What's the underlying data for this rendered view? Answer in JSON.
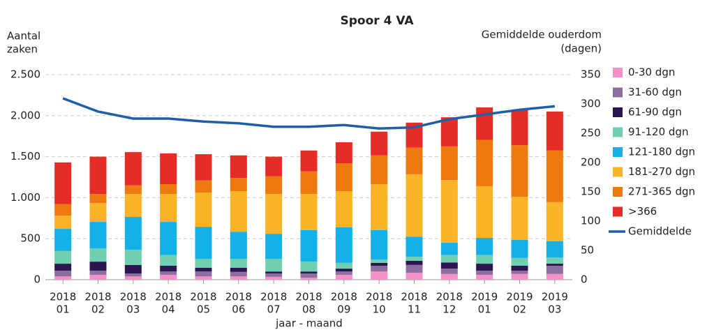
{
  "chart_data": {
    "type": "bar",
    "stacked": true,
    "title": "Spoor 4 VA",
    "y_label": [
      "Aantal",
      "zaken"
    ],
    "y2_label": [
      "Gemiddelde ouderdom",
      "(dagen)"
    ],
    "x_label": "jaar - maand",
    "categories": [
      [
        "2018",
        "01"
      ],
      [
        "2018",
        "02"
      ],
      [
        "2018",
        "03"
      ],
      [
        "2018",
        "04"
      ],
      [
        "2018",
        "05"
      ],
      [
        "2018",
        "06"
      ],
      [
        "2018",
        "07"
      ],
      [
        "2018",
        "08"
      ],
      [
        "2018",
        "09"
      ],
      [
        "2018",
        "10"
      ],
      [
        "2018",
        "11"
      ],
      [
        "2018",
        "12"
      ],
      [
        "2019",
        "01"
      ],
      [
        "2019",
        "02"
      ],
      [
        "2019",
        "03"
      ]
    ],
    "ylim": [
      0,
      2500
    ],
    "yticks": [
      0,
      {
        "value": 500,
        "label": "500"
      },
      {
        "value": 1000,
        "label": "1.000"
      },
      {
        "value": 1500,
        "label": "1.500"
      },
      {
        "value": 2000,
        "label": "2.000"
      },
      {
        "value": 2500,
        "label": "2.500"
      }
    ],
    "y2lim": [
      0,
      350
    ],
    "y2ticks": [
      0,
      50,
      100,
      150,
      200,
      250,
      300,
      350
    ],
    "grid": true,
    "legend": "right",
    "series": [
      {
        "name": "0-30 dgn",
        "color": "#f590c8",
        "values": [
          40,
          60,
          40,
          60,
          40,
          40,
          35,
          25,
          60,
          100,
          85,
          70,
          60,
          70,
          70
        ]
      },
      {
        "name": "31-60 dgn",
        "color": "#8c6fa0",
        "values": [
          70,
          50,
          35,
          40,
          60,
          55,
          40,
          50,
          40,
          70,
          95,
          65,
          50,
          40,
          100
        ]
      },
      {
        "name": "61-90 dgn",
        "color": "#2b1650",
        "values": [
          85,
          110,
          105,
          70,
          45,
          50,
          25,
          25,
          35,
          35,
          50,
          75,
          85,
          60,
          25
        ]
      },
      {
        "name": "91-120 dgn",
        "color": "#6fcfb0",
        "values": [
          155,
          160,
          185,
          130,
          110,
          110,
          155,
          120,
          70,
          40,
          50,
          90,
          105,
          95,
          75
        ]
      },
      {
        "name": "121-180 dgn",
        "color": "#14b0e8",
        "values": [
          270,
          325,
          400,
          405,
          390,
          330,
          305,
          385,
          435,
          360,
          245,
          150,
          210,
          220,
          200
        ]
      },
      {
        "name": "181-270 dgn",
        "color": "#fbb428",
        "values": [
          160,
          230,
          280,
          340,
          415,
          495,
          485,
          440,
          440,
          560,
          760,
          765,
          630,
          525,
          475
        ]
      },
      {
        "name": "271-365 dgn",
        "color": "#ee7a0f",
        "values": [
          140,
          110,
          105,
          120,
          150,
          160,
          215,
          275,
          340,
          350,
          325,
          410,
          565,
          630,
          630
        ]
      },
      {
        "name": ">366",
        "color": "#e62c26",
        "values": [
          510,
          455,
          405,
          375,
          320,
          275,
          240,
          255,
          255,
          290,
          305,
          355,
          395,
          435,
          475
        ]
      },
      {
        "name": "Gemiddelde",
        "color": "#1e5fa8",
        "type": "line",
        "axis": "y2",
        "values": [
          309.5,
          287,
          275,
          275,
          270,
          267,
          261,
          261,
          264,
          258,
          260,
          274,
          282,
          290,
          296
        ]
      }
    ]
  }
}
